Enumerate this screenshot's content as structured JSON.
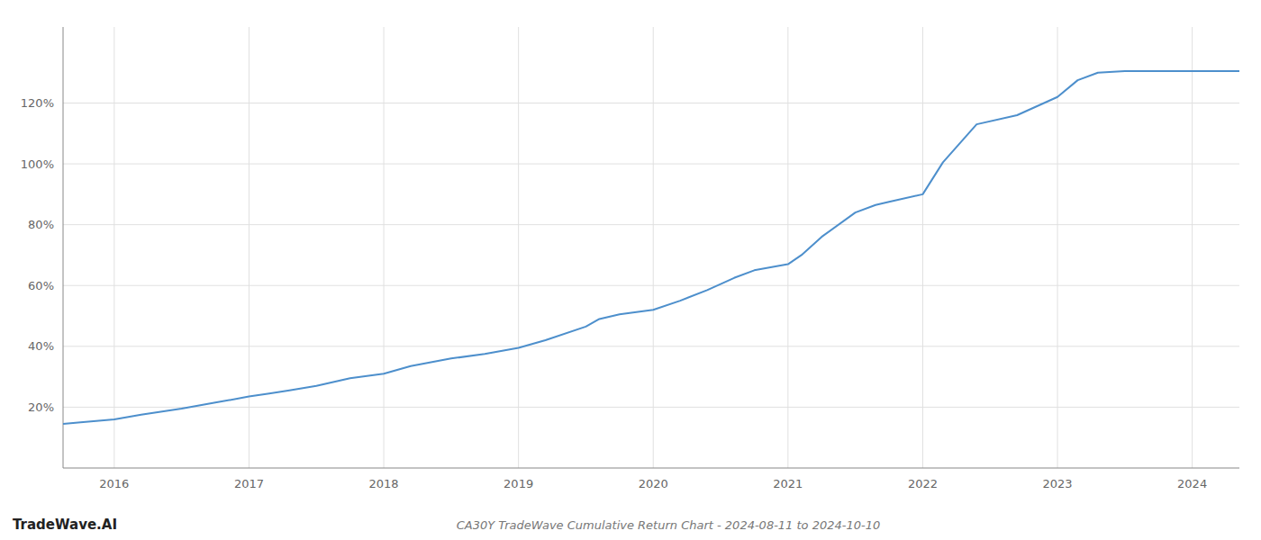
{
  "chart_data": {
    "type": "line",
    "title": "CA30Y TradeWave Cumulative Return Chart - 2024-08-11 to 2024-10-10",
    "annotations": [
      "TradeWave.AI"
    ],
    "x": [
      2015.62,
      2015.75,
      2016.0,
      2016.2,
      2016.5,
      2016.75,
      2017.0,
      2017.15,
      2017.3,
      2017.5,
      2017.75,
      2018.0,
      2018.2,
      2018.5,
      2018.75,
      2019.0,
      2019.2,
      2019.5,
      2019.6,
      2019.75,
      2020.0,
      2020.2,
      2020.4,
      2020.6,
      2020.75,
      2021.0,
      2021.1,
      2021.25,
      2021.5,
      2021.65,
      2021.75,
      2022.0,
      2022.15,
      2022.4,
      2022.7,
      2023.0,
      2023.15,
      2023.3,
      2023.5,
      2023.75,
      2024.0,
      2024.2,
      2024.35
    ],
    "values": [
      14.5,
      15.0,
      16.0,
      17.5,
      19.5,
      21.5,
      23.5,
      24.5,
      25.5,
      27.0,
      29.5,
      31.0,
      33.5,
      36.0,
      37.5,
      39.5,
      42.0,
      46.5,
      49.0,
      50.5,
      52.0,
      55.0,
      58.5,
      62.5,
      65.0,
      67.0,
      70.0,
      76.0,
      84.0,
      86.5,
      87.5,
      90.0,
      100.5,
      113.0,
      116.0,
      122.0,
      127.5,
      130.0,
      130.5,
      130.5,
      130.5,
      130.5,
      130.5
    ],
    "color": "#4d8fcc",
    "xlim": [
      2015.62,
      2024.35
    ],
    "xticks": [
      2016,
      2017,
      2018,
      2019,
      2020,
      2021,
      2022,
      2023,
      2024
    ],
    "ylim": [
      0,
      145
    ],
    "yticks": [
      {
        "value": 20,
        "label": "20%"
      },
      {
        "value": 40,
        "label": "40%"
      },
      {
        "value": 60,
        "label": "60%"
      },
      {
        "value": 80,
        "label": "80%"
      },
      {
        "value": 100,
        "label": "100%"
      },
      {
        "value": 120,
        "label": "120%"
      }
    ],
    "grid": true
  }
}
